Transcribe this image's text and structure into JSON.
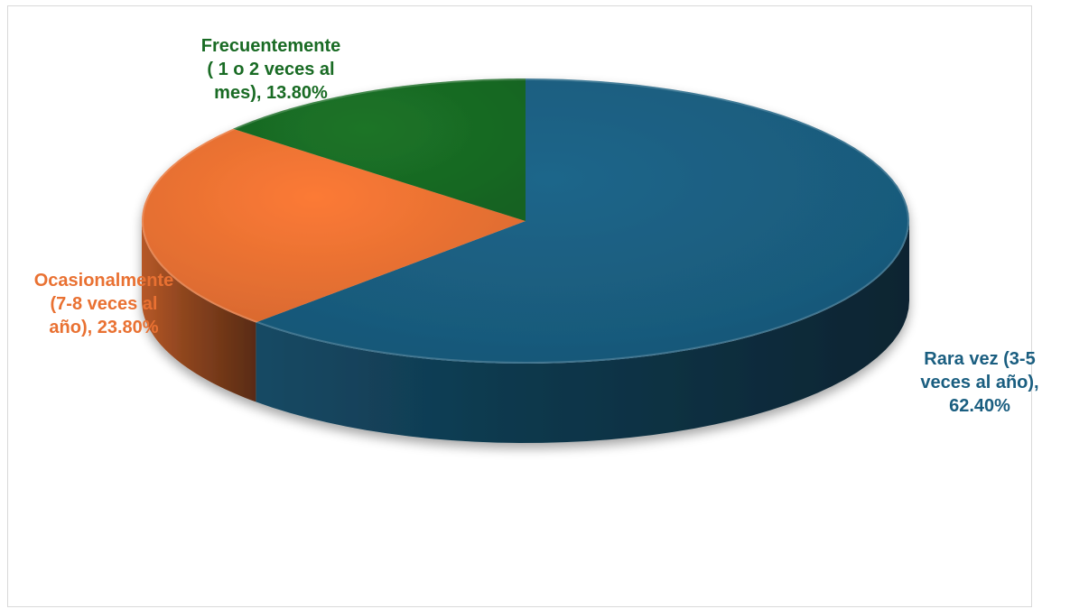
{
  "chart_data": {
    "type": "pie",
    "style": "3d",
    "slices": [
      {
        "label_lines": [
          "Rara vez (3-5",
          "veces al año),",
          "62.40%"
        ],
        "value": 62.4,
        "color": "#1a5e80"
      },
      {
        "label_lines": [
          "Ocasionalmente",
          "(7-8 veces al",
          "año), 23.80%"
        ],
        "value": 23.8,
        "color": "#e97132"
      },
      {
        "label_lines": [
          "Frecuentemente",
          "( 1 o 2 veces al",
          "mes), 13.80%"
        ],
        "value": 13.8,
        "color": "#196b24"
      }
    ]
  }
}
